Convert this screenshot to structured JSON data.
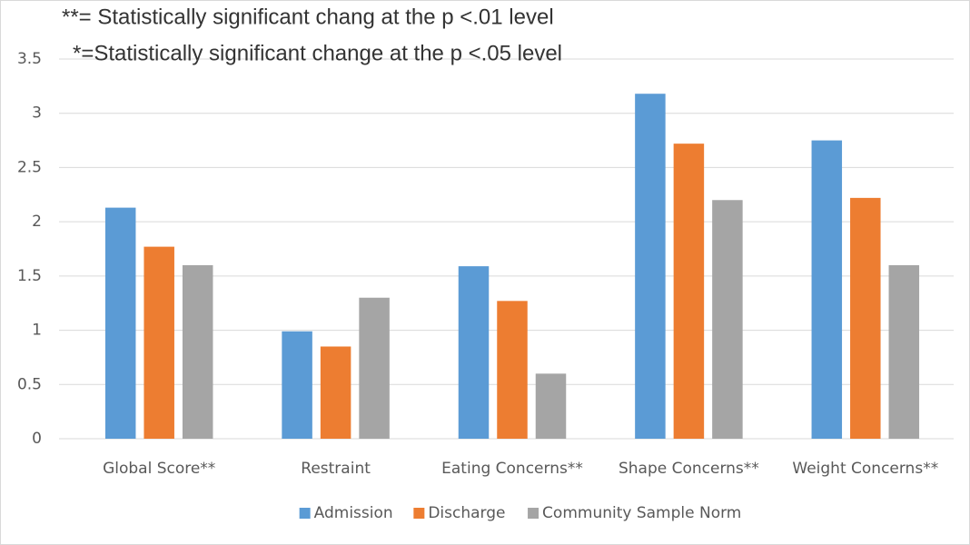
{
  "chart_data": {
    "type": "bar",
    "annotations": [
      "**= Statistically significant chang at the p <.01 level",
      "*=Statistically significant change at the p <.05 level"
    ],
    "categories": [
      "Global Score**",
      "Restraint",
      "Eating Concerns**",
      "Shape Concerns**",
      "Weight Concerns**"
    ],
    "series": [
      {
        "name": "Admission",
        "color": "#5b9bd5",
        "values": [
          2.13,
          0.99,
          1.59,
          3.18,
          2.75
        ]
      },
      {
        "name": "Discharge",
        "color": "#ed7d31",
        "values": [
          1.77,
          0.85,
          1.27,
          2.72,
          2.22
        ]
      },
      {
        "name": "Community Sample Norm",
        "color": "#a5a5a5",
        "values": [
          1.6,
          1.3,
          0.6,
          2.2,
          1.6
        ]
      }
    ],
    "ylim": [
      0,
      3.5
    ],
    "yticks": [
      0,
      0.5,
      1,
      1.5,
      2,
      2.5,
      3,
      3.5
    ],
    "grid": true,
    "legend": "bottom"
  }
}
